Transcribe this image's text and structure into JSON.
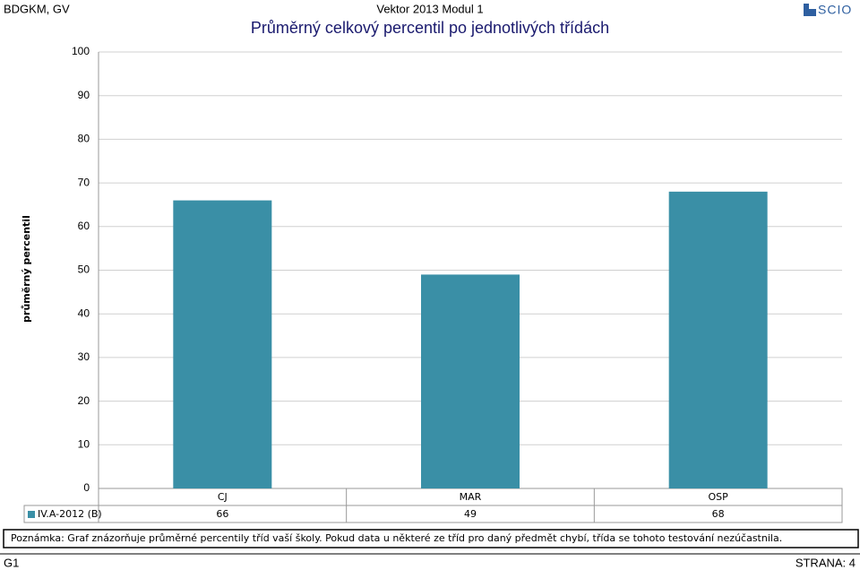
{
  "header": {
    "left": "BDGKM, GV",
    "center": "Vektor 2013 Modul 1",
    "logo": "SCIO"
  },
  "chart_data": {
    "type": "bar",
    "title": "Průměrný celkový percentil po jednotlivých třídách",
    "y_label": "průměrný percentil",
    "categories": [
      "CJ",
      "MAR",
      "OSP"
    ],
    "series": [
      {
        "name": "IV.A-2012 (B)",
        "color": "#3a8fa6",
        "values": [
          66,
          49,
          68
        ]
      }
    ],
    "ylim": [
      0,
      100
    ],
    "yticks": [
      0,
      10,
      20,
      30,
      40,
      50,
      60,
      70,
      80,
      90,
      100
    ],
    "grid": true
  },
  "note": "Poznámka: Graf znázorňuje průměrné percentily tříd vaší školy. Pokud data u některé ze tříd pro daný předmět chybí, třída se tohoto testování nezúčastnila.",
  "footer": {
    "left": "G1",
    "right": "STRANA: 4"
  }
}
